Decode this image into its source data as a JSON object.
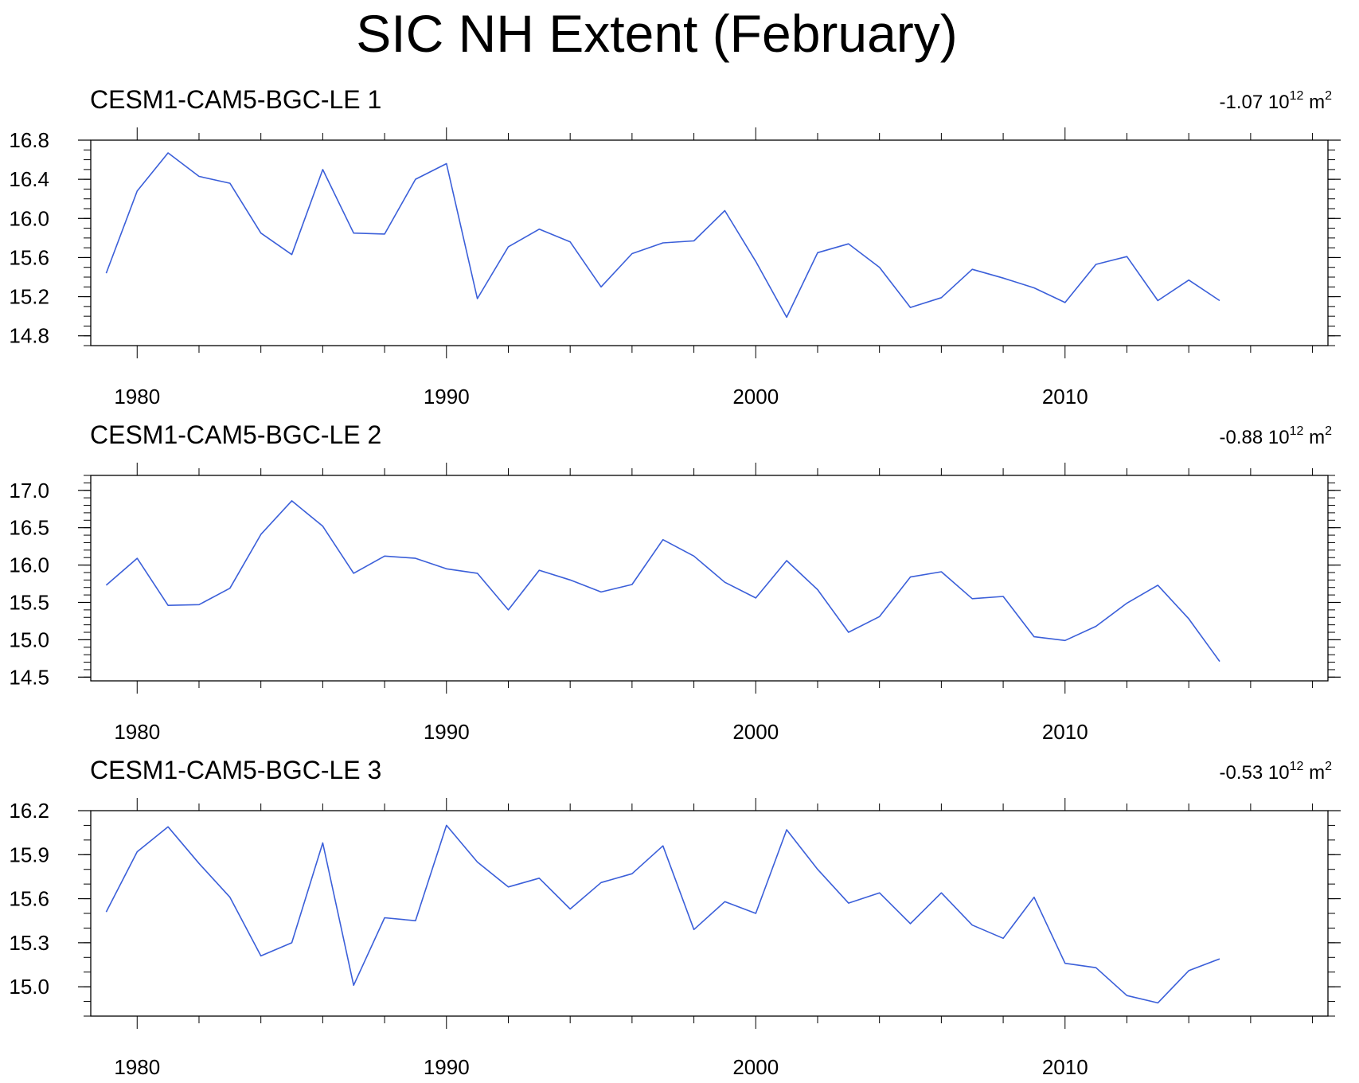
{
  "title": "SIC NH Extent (February)",
  "colors": {
    "line": "#3b5fd9",
    "axis": "#000000",
    "background": "#ffffff"
  },
  "chart_data": [
    {
      "type": "line",
      "subtitle": "CESM1-CAM5-BGC-LE 1",
      "trend": {
        "value": "-1.07 10",
        "exponent": "12",
        "unit": " m",
        "unit_exponent": "2"
      },
      "x": [
        1979,
        1980,
        1981,
        1982,
        1983,
        1984,
        1985,
        1986,
        1987,
        1988,
        1989,
        1990,
        1991,
        1992,
        1993,
        1994,
        1995,
        1996,
        1997,
        1998,
        1999,
        2000,
        2001,
        2002,
        2003,
        2004,
        2005,
        2006,
        2007,
        2008,
        2009,
        2010,
        2011,
        2012,
        2013,
        2014,
        2015
      ],
      "values": [
        15.44,
        16.28,
        16.67,
        16.43,
        16.36,
        15.85,
        15.63,
        16.5,
        15.85,
        15.84,
        16.4,
        16.56,
        15.18,
        15.71,
        15.89,
        15.76,
        15.3,
        15.64,
        15.75,
        15.77,
        16.08,
        15.56,
        14.99,
        15.65,
        15.74,
        15.5,
        15.09,
        15.19,
        15.48,
        15.39,
        15.29,
        15.14,
        15.53,
        15.61,
        15.16,
        15.37,
        15.16
      ],
      "xlim": [
        1978.5,
        2018.5
      ],
      "ylim": [
        14.7,
        16.8
      ],
      "yticks": [
        14.8,
        15.2,
        15.6,
        16.0,
        16.4,
        16.8
      ],
      "ytick_labels": [
        "14.8",
        "15.2",
        "15.6",
        "16.0",
        "16.4",
        "16.8"
      ],
      "yminor_step": 0.1,
      "xticks": [
        1980,
        1990,
        2000,
        2010
      ],
      "xtick_labels": [
        "1980",
        "1990",
        "2000",
        "2010"
      ]
    },
    {
      "type": "line",
      "subtitle": "CESM1-CAM5-BGC-LE 2",
      "trend": {
        "value": "-0.88 10",
        "exponent": "12",
        "unit": " m",
        "unit_exponent": "2"
      },
      "x": [
        1979,
        1980,
        1981,
        1982,
        1983,
        1984,
        1985,
        1986,
        1987,
        1988,
        1989,
        1990,
        1991,
        1992,
        1993,
        1994,
        1995,
        1996,
        1997,
        1998,
        1999,
        2000,
        2001,
        2002,
        2003,
        2004,
        2005,
        2006,
        2007,
        2008,
        2009,
        2010,
        2011,
        2012,
        2013,
        2014,
        2015
      ],
      "values": [
        15.73,
        16.09,
        15.46,
        15.47,
        15.69,
        16.41,
        16.86,
        16.52,
        15.89,
        16.12,
        16.09,
        15.95,
        15.89,
        15.4,
        15.93,
        15.8,
        15.64,
        15.74,
        16.34,
        16.12,
        15.77,
        15.56,
        16.06,
        15.67,
        15.1,
        15.31,
        15.84,
        15.91,
        15.55,
        15.58,
        15.04,
        14.99,
        15.18,
        15.49,
        15.73,
        15.28,
        14.71
      ],
      "xlim": [
        1978.5,
        2018.5
      ],
      "ylim": [
        14.45,
        17.2
      ],
      "yticks": [
        14.5,
        15.0,
        15.5,
        16.0,
        16.5,
        17.0
      ],
      "ytick_labels": [
        "14.5",
        "15.0",
        "15.5",
        "16.0",
        "16.5",
        "17.0"
      ],
      "yminor_step": 0.1,
      "xticks": [
        1980,
        1990,
        2000,
        2010
      ],
      "xtick_labels": [
        "1980",
        "1990",
        "2000",
        "2010"
      ]
    },
    {
      "type": "line",
      "subtitle": "CESM1-CAM5-BGC-LE 3",
      "trend": {
        "value": "-0.53 10",
        "exponent": "12",
        "unit": " m",
        "unit_exponent": "2"
      },
      "x": [
        1979,
        1980,
        1981,
        1982,
        1983,
        1984,
        1985,
        1986,
        1987,
        1988,
        1989,
        1990,
        1991,
        1992,
        1993,
        1994,
        1995,
        1996,
        1997,
        1998,
        1999,
        2000,
        2001,
        2002,
        2003,
        2004,
        2005,
        2006,
        2007,
        2008,
        2009,
        2010,
        2011,
        2012,
        2013,
        2014,
        2015
      ],
      "values": [
        15.51,
        15.92,
        16.09,
        15.84,
        15.61,
        15.21,
        15.3,
        15.98,
        15.01,
        15.47,
        15.45,
        16.1,
        15.85,
        15.68,
        15.74,
        15.53,
        15.71,
        15.77,
        15.96,
        15.39,
        15.58,
        15.5,
        16.07,
        15.8,
        15.57,
        15.64,
        15.43,
        15.64,
        15.42,
        15.33,
        15.61,
        15.16,
        15.13,
        14.94,
        14.89,
        15.11,
        15.19
      ],
      "xlim": [
        1978.5,
        2018.5
      ],
      "ylim": [
        14.8,
        16.2
      ],
      "yticks": [
        15.0,
        15.3,
        15.6,
        15.9,
        16.2
      ],
      "ytick_labels": [
        "15.0",
        "15.3",
        "15.6",
        "15.9",
        "16.2"
      ],
      "yminor_step": 0.1,
      "xticks": [
        1980,
        1990,
        2000,
        2010
      ],
      "xtick_labels": [
        "1980",
        "1990",
        "2000",
        "2010"
      ]
    }
  ]
}
